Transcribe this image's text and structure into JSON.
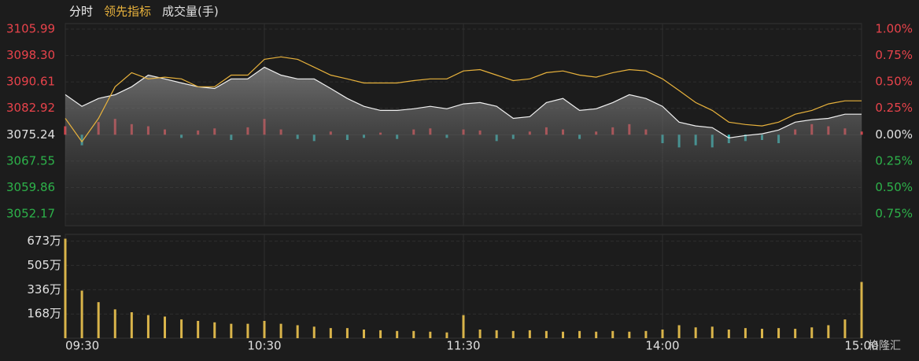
{
  "chart_data": {
    "type": "line",
    "categories": [
      "09:30",
      null,
      null,
      null,
      null,
      null,
      null,
      null,
      null,
      null,
      null,
      null,
      "10:30",
      null,
      null,
      null,
      null,
      null,
      null,
      null,
      null,
      null,
      null,
      null,
      "11:30",
      null,
      null,
      null,
      null,
      null,
      null,
      null,
      null,
      null,
      null,
      null,
      "14:00",
      null,
      null,
      null,
      null,
      null,
      null,
      null,
      null,
      null,
      null,
      null,
      "15:00"
    ],
    "series": [
      {
        "name": "分时",
        "color": "#f0f0f0",
        "values": [
          3086.9,
          3083.5,
          3085.8,
          3086.9,
          3089.2,
          3092.6,
          3091.5,
          3090.3,
          3089.2,
          3088.7,
          3091.5,
          3091.5,
          3094.9,
          3092.6,
          3091.5,
          3091.5,
          3088.7,
          3085.8,
          3083.5,
          3082.3,
          3082.3,
          3082.8,
          3083.5,
          3082.8,
          3084.2,
          3084.6,
          3083.5,
          3080.0,
          3080.5,
          3084.6,
          3085.8,
          3082.3,
          3082.8,
          3084.6,
          3086.9,
          3085.8,
          3083.5,
          3078.9,
          3077.8,
          3077.3,
          3074.3,
          3075.0,
          3075.5,
          3076.6,
          3078.9,
          3079.6,
          3080.0,
          3081.2,
          3081.2
        ]
      },
      {
        "name": "领先指标",
        "color": "#e8b23c",
        "values": [
          3080.0,
          3073.2,
          3080.0,
          3089.2,
          3093.3,
          3091.5,
          3092.0,
          3091.5,
          3089.2,
          3089.2,
          3092.6,
          3092.6,
          3097.2,
          3097.9,
          3097.2,
          3094.9,
          3092.6,
          3091.5,
          3090.3,
          3090.3,
          3090.3,
          3091.0,
          3091.5,
          3091.5,
          3093.8,
          3094.2,
          3092.6,
          3091.0,
          3091.5,
          3093.3,
          3093.8,
          3092.6,
          3092.0,
          3093.3,
          3094.2,
          3093.8,
          3091.5,
          3088.1,
          3084.6,
          3082.3,
          3078.9,
          3078.2,
          3077.8,
          3078.9,
          3081.2,
          3082.3,
          3084.2,
          3085.1,
          3085.1
        ]
      },
      {
        "name": "成交量(手)",
        "color": "#d9b44a",
        "axis": "y3",
        "values": [
          6900000,
          3300000,
          2500000,
          2000000,
          1800000,
          1600000,
          1500000,
          1300000,
          1200000,
          1100000,
          1000000,
          1000000,
          1200000,
          1000000,
          900000,
          800000,
          700000,
          700000,
          600000,
          550000,
          500000,
          500000,
          450000,
          400000,
          1600000,
          600000,
          550000,
          500000,
          550000,
          500000,
          450000,
          500000,
          450000,
          500000,
          450000,
          500000,
          600000,
          900000,
          750000,
          800000,
          600000,
          700000,
          650000,
          700000,
          650000,
          750000,
          900000,
          1300000,
          3900000
        ]
      }
    ],
    "breadth": {
      "axis": "y2",
      "up_color": "#e8434b",
      "down_color": "#2fb8b8",
      "values": [
        0.08,
        -0.1,
        0.12,
        0.15,
        0.1,
        0.08,
        0.05,
        -0.03,
        0.04,
        0.06,
        -0.05,
        0.07,
        0.15,
        0.05,
        -0.04,
        -0.06,
        0.03,
        -0.05,
        -0.03,
        0.02,
        -0.04,
        0.05,
        0.06,
        -0.03,
        0.05,
        0.04,
        -0.06,
        -0.04,
        0.03,
        0.07,
        0.05,
        -0.04,
        0.03,
        0.07,
        0.1,
        0.05,
        -0.08,
        -0.12,
        -0.1,
        -0.12,
        -0.08,
        -0.06,
        -0.05,
        -0.08,
        0.05,
        0.1,
        0.08,
        0.06,
        0.03
      ]
    },
    "ylim": [
      3052.17,
      3105.99
    ],
    "yticks": [
      3105.99,
      {
        "value": 3098.3,
        "label": "3098.30"
      },
      3090.61,
      3082.92,
      3075.24,
      3067.55,
      3059.86,
      3052.17
    ],
    "y2lim": [
      -0.75,
      1.0
    ],
    "y2ticks": [
      {
        "value": 1.0,
        "label": "1.00%"
      },
      {
        "value": 0.75,
        "label": "0.75%"
      },
      {
        "value": 0.5,
        "label": "0.50%"
      },
      {
        "value": 0.25,
        "label": "0.25%"
      },
      {
        "value": 0,
        "label": "0.00%"
      },
      {
        "value": -0.25,
        "label": "0.25%"
      },
      {
        "value": -0.5,
        "label": "0.50%"
      },
      {
        "value": -0.75,
        "label": "0.75%"
      }
    ],
    "y3lim": [
      0,
      7200000
    ],
    "y3ticks": [
      {
        "value": 6730000,
        "label": "673万"
      },
      {
        "value": 5050000,
        "label": "505万"
      },
      {
        "value": 3360000,
        "label": "336万"
      },
      {
        "value": 1680000,
        "label": "168万"
      }
    ],
    "up_color": "#e8434b",
    "down_color": "#2db24a",
    "grid": true,
    "watermark": "格隆汇"
  }
}
